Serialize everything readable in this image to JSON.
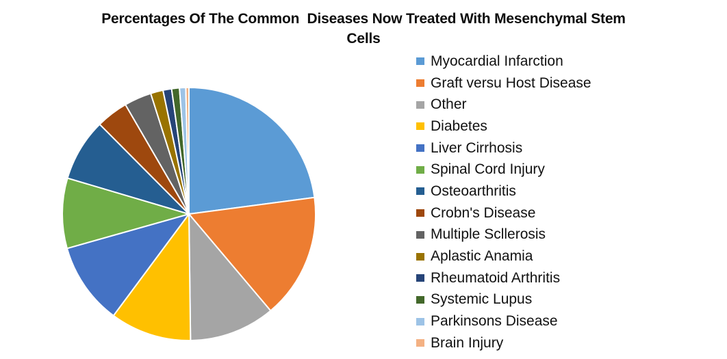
{
  "title": "Percentages Of The Common  Diseases Now Treated With Mesenchymal Stem\nCells",
  "chart_data": {
    "type": "pie",
    "title": "Percentages Of The Common  Diseases Now Treated With Mesenchymal Stem Cells",
    "legend_position": "right",
    "start_angle_deg": 0,
    "direction": "clockwise",
    "slice_border_color": "#FFFFFF",
    "background_color": "#FFFFFF",
    "units": "percent",
    "series": [
      {
        "label": "Myocardial Infarction",
        "value": 23.0,
        "color": "#5B9BD5"
      },
      {
        "label": "Graft versu Host Disease",
        "value": 16.0,
        "color": "#ED7D31"
      },
      {
        "label": "Other",
        "value": 11.0,
        "color": "#A5A5A5"
      },
      {
        "label": "Diabetes",
        "value": 10.4,
        "color": "#FFC000"
      },
      {
        "label": "Liver Cirrhosis",
        "value": 10.5,
        "color": "#4472C4"
      },
      {
        "label": "Spinal Cord Injury",
        "value": 9.0,
        "color": "#70AD47"
      },
      {
        "label": "Osteoarthritis",
        "value": 8.0,
        "color": "#255E91"
      },
      {
        "label": "Crobn's Disease",
        "value": 4.1,
        "color": "#9E480E"
      },
      {
        "label": "Multiple Scllerosis",
        "value": 3.5,
        "color": "#636363"
      },
      {
        "label": "Aplastic Anamia",
        "value": 1.6,
        "color": "#997300"
      },
      {
        "label": "Rheumatoid Arthritis",
        "value": 1.1,
        "color": "#264478"
      },
      {
        "label": "Systemic Lupus",
        "value": 1.0,
        "color": "#43682B"
      },
      {
        "label": "Parkinsons Disease",
        "value": 0.8,
        "color": "#9DC3E6"
      },
      {
        "label": "Brain Injury",
        "value": 0.4,
        "color": "#F4B183"
      }
    ]
  }
}
